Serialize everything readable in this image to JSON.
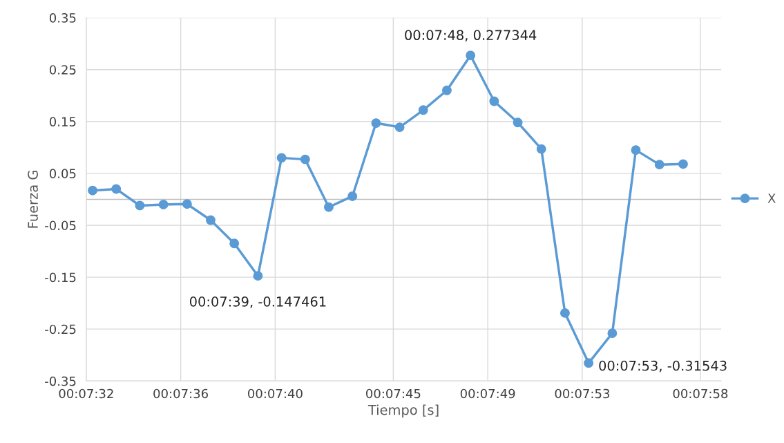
{
  "chart_data": {
    "type": "line",
    "xlabel": "Tiempo [s]",
    "ylabel": "Fuerza G",
    "x": [
      0.125631,
      0.125908,
      0.126186,
      0.126464,
      0.126742,
      0.127019,
      0.127297,
      0.127575,
      0.127853,
      0.128131,
      0.128408,
      0.128686,
      0.128964,
      0.129242,
      0.129519,
      0.129797,
      0.130075,
      0.130353,
      0.130631,
      0.130908,
      0.131186,
      0.131464,
      0.131742,
      0.132019,
      0.132297,
      0.132575
    ],
    "series": [
      {
        "name": "X",
        "color": "#5b9bd5",
        "values": [
          0.017,
          0.02,
          -0.012,
          -0.01,
          -0.009,
          -0.04,
          -0.085,
          -0.147461,
          0.08,
          0.077,
          -0.015,
          0.006,
          0.147,
          0.139,
          0.172,
          0.21,
          0.277344,
          0.189,
          0.148,
          0.097,
          -0.219,
          -0.31543,
          -0.258,
          0.095,
          0.067,
          0.068
        ]
      }
    ],
    "xlim": [
      0.125556,
      0.133024
    ],
    "xticks": [
      {
        "value": 0.125556,
        "label": "00:07:32"
      },
      {
        "value": 0.126667,
        "label": "00:07:36"
      },
      {
        "value": 0.127778,
        "label": "00:07:40"
      },
      {
        "value": 0.129167,
        "label": "00:07:45"
      },
      {
        "value": 0.130278,
        "label": "00:07:49"
      },
      {
        "value": 0.131389,
        "label": "00:07:53"
      },
      {
        "value": 0.132778,
        "label": "00:07:58"
      }
    ],
    "ylim": [
      -0.35,
      0.35
    ],
    "yticks": [
      -0.35,
      -0.25,
      -0.15,
      -0.05,
      0.05,
      0.15,
      0.25,
      0.35
    ],
    "annotations": [
      {
        "text": "00:07:39, -0.147461",
        "x": 0.127575,
        "y": -0.147461
      },
      {
        "text": "00:07:48, 0.277344",
        "x": 0.130075,
        "y": 0.277344
      },
      {
        "text": "00:07:53, -0.31543",
        "x": 0.131464,
        "y": -0.31543
      }
    ],
    "grid": true,
    "legend": "right",
    "marker": "circle",
    "line_style": "solid"
  }
}
